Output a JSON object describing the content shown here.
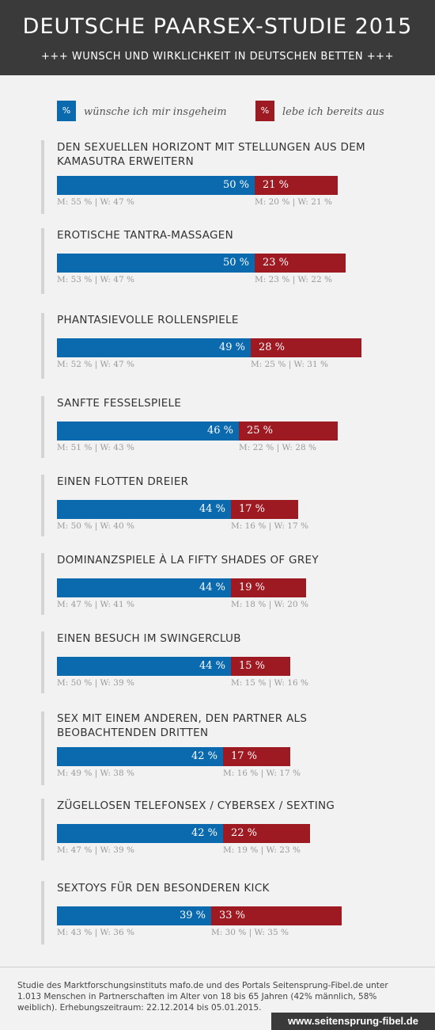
{
  "header": {
    "title": "DEUTSCHE PAARSEX-STUDIE 2015",
    "subtitle": "+++ WUNSCH UND WIRKLICHKEIT IN DEUTSCHEN BETTEN +++"
  },
  "legend": {
    "blue_symbol": "%",
    "blue_label": "wünsche ich mir insgeheim",
    "red_symbol": "%",
    "red_label": "lebe ich bereits aus"
  },
  "colors": {
    "wish": "#0a6aad",
    "already": "#9e1a23",
    "header": "#3a3a3a"
  },
  "chart_data": {
    "type": "bar",
    "series": [
      {
        "name": "wünsche ich mir insgeheim",
        "values": [
          50,
          50,
          49,
          46,
          44,
          44,
          44,
          42,
          42,
          39
        ]
      },
      {
        "name": "lebe ich bereits aus",
        "values": [
          21,
          23,
          28,
          25,
          17,
          19,
          15,
          17,
          22,
          33
        ]
      }
    ],
    "items": [
      {
        "label": "DEN SEXUELLEN HORIZONT MIT STELLUNGEN AUS DEM KAMASUTRA ERWEITERN",
        "wish": 50,
        "already": 21,
        "wish_text": "50 %",
        "already_text": "21 %",
        "wish_split": "M: 55 % | W: 47 %",
        "already_split": "M: 20 % | W: 21 %"
      },
      {
        "label": "EROTISCHE TANTRA-MASSAGEN",
        "wish": 50,
        "already": 23,
        "wish_text": "50 %",
        "already_text": "23 %",
        "wish_split": "M: 53 % | W: 47 %",
        "already_split": "M: 23 % | W: 22 %"
      },
      {
        "label": "PHANTASIEVOLLE ROLLENSPIELE",
        "wish": 49,
        "already": 28,
        "wish_text": "49 %",
        "already_text": "28 %",
        "wish_split": "M: 52 % | W: 47 %",
        "already_split": "M: 25 % | W: 31 %"
      },
      {
        "label": "SANFTE FESSELSPIELE",
        "wish": 46,
        "already": 25,
        "wish_text": "46 %",
        "already_text": "25 %",
        "wish_split": "M: 51 % | W: 43 %",
        "already_split": "M: 22 % | W: 28 %"
      },
      {
        "label": "EINEN FLOTTEN DREIER",
        "wish": 44,
        "already": 17,
        "wish_text": "44 %",
        "already_text": "17 %",
        "wish_split": "M: 50 % | W: 40 %",
        "already_split": "M: 16 % | W: 17 %"
      },
      {
        "label": "DOMINANZSPIELE À LA FIFTY SHADES OF GREY",
        "wish": 44,
        "already": 19,
        "wish_text": "44 %",
        "already_text": "19 %",
        "wish_split": "M: 47 % | W: 41 %",
        "already_split": "M: 18 % | W: 20 %"
      },
      {
        "label": "EINEN BESUCH IM SWINGERCLUB",
        "wish": 44,
        "already": 15,
        "wish_text": "44 %",
        "already_text": "15 %",
        "wish_split": "M: 50 % | W: 39 %",
        "already_split": "M: 15 % | W: 16 %"
      },
      {
        "label": "SEX MIT EINEM ANDEREN, DEN PARTNER ALS BEOBACHTENDEN DRITTEN",
        "wish": 42,
        "already": 17,
        "wish_text": "42 %",
        "already_text": "17 %",
        "wish_split": "M: 49 % | W: 38 %",
        "already_split": "M: 16 % | W: 17 %"
      },
      {
        "label": "ZÜGELLOSEN TELEFONSEX / CYBERSEX / SEXTING",
        "wish": 42,
        "already": 22,
        "wish_text": "42 %",
        "already_text": "22 %",
        "wish_split": "M: 47 % | W: 39 %",
        "already_split": "M: 19 % | W: 23 %"
      },
      {
        "label": "SEXTOYS FÜR DEN BESONDEREN KICK",
        "wish": 39,
        "already": 33,
        "wish_text": "39 %",
        "already_text": "33 %",
        "wish_split": "M: 43 % | W: 36 %",
        "already_split": "M: 30 % | W: 35 %"
      }
    ]
  },
  "footer": {
    "text": "Studie des Marktforschungsinstituts mafo.de und des Portals Seitensprung-Fibel.de unter 1.013 Menschen in Partnerschaften im Alter von 18 bis 65 Jahren (42% männlich, 58% weiblich). Erhebungszeitraum: 22.12.2014 bis 05.01.2015.",
    "url": "www.seitensprung-fibel.de"
  }
}
